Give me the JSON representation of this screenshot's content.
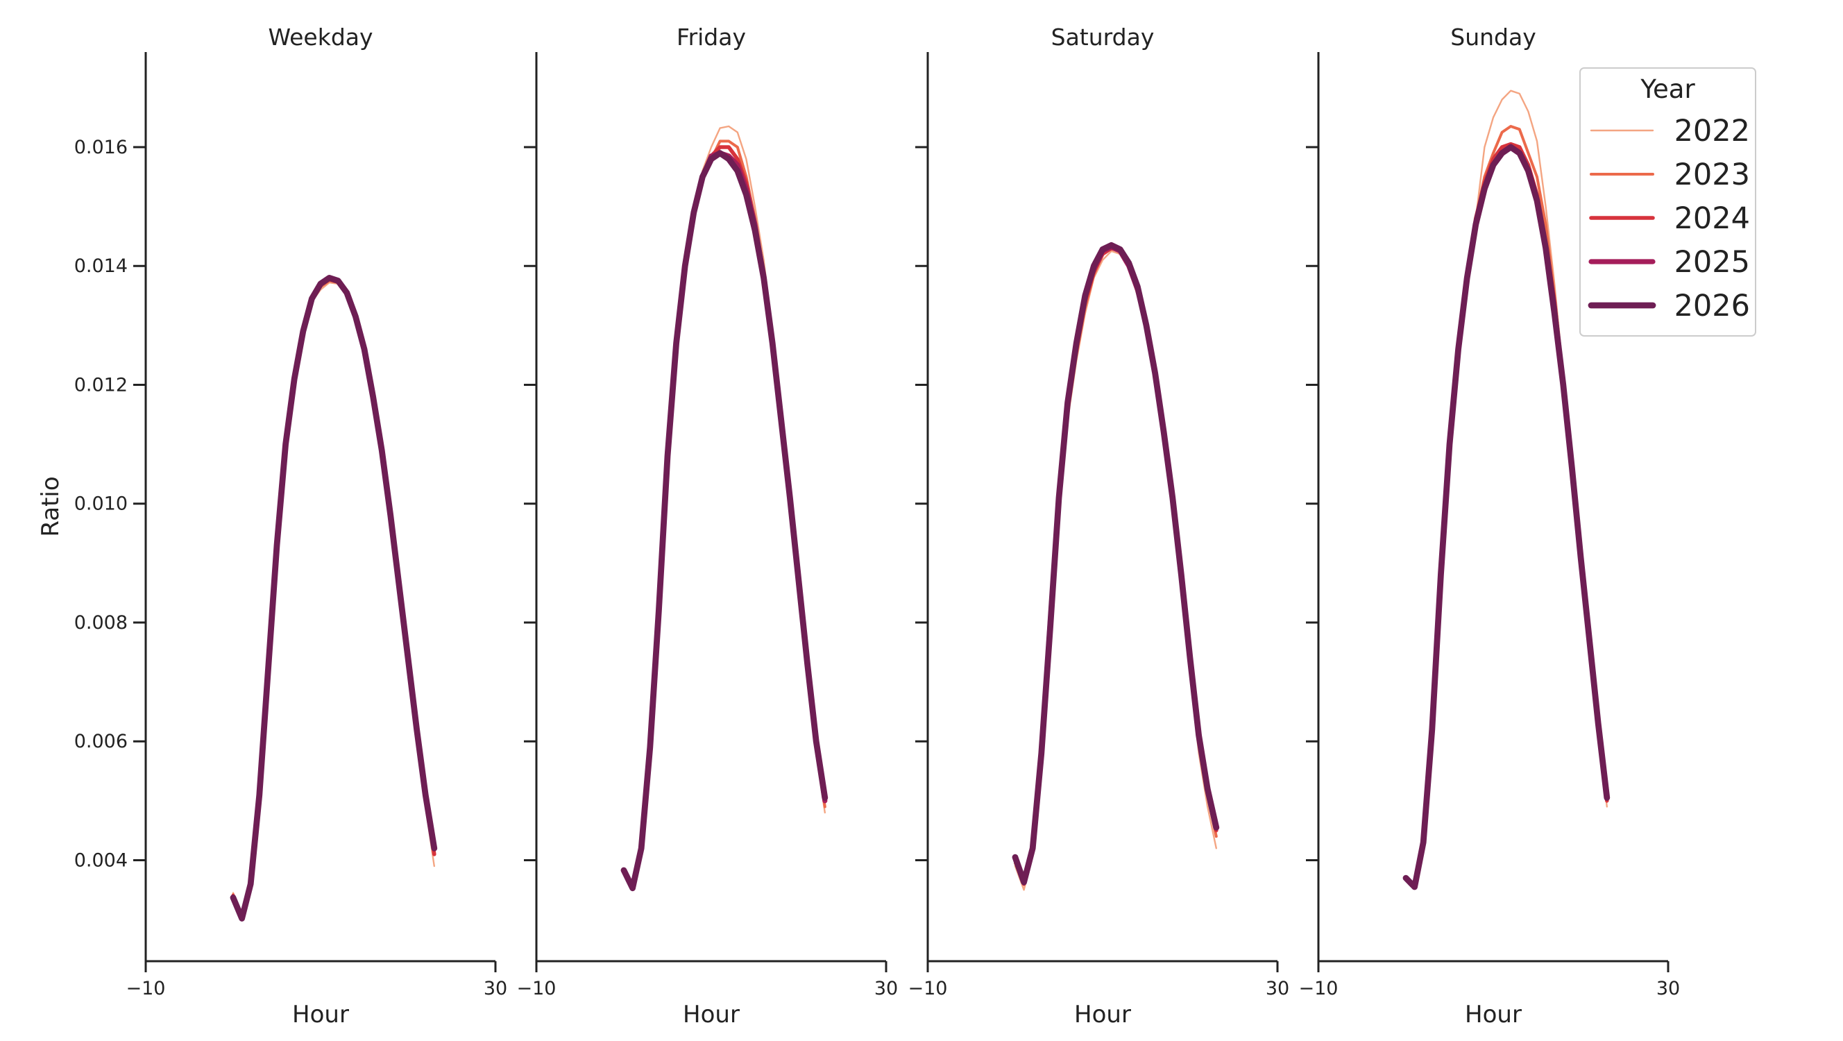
{
  "chart_data": {
    "type": "line",
    "y_label": "Ratio",
    "x_label": "Hour",
    "xlim": [
      -10,
      30
    ],
    "ylim": [
      0.0023,
      0.0176
    ],
    "x_ticks": [
      -10,
      30
    ],
    "x_tick_labels": [
      "−10",
      "30"
    ],
    "y_ticks": [
      0.004,
      0.006,
      0.008,
      0.01,
      0.012,
      0.014,
      0.016
    ],
    "y_tick_labels": [
      "0.004",
      "0.006",
      "0.008",
      "0.010",
      "0.012",
      "0.014",
      "0.016"
    ],
    "grid": false,
    "legend": {
      "title": "Year",
      "placement": "top-right",
      "entries": [
        {
          "label": "2022",
          "color": "#f4a582",
          "width": 1.5
        },
        {
          "label": "2023",
          "color": "#ec6a4b",
          "width": 2.5
        },
        {
          "label": "2024",
          "color": "#d7333c",
          "width": 3.5
        },
        {
          "label": "2025",
          "color": "#a51d5a",
          "width": 4.5
        },
        {
          "label": "2026",
          "color": "#6e1e54",
          "width": 5.5
        }
      ]
    },
    "x": [
      0,
      1,
      2,
      3,
      4,
      5,
      6,
      7,
      8,
      9,
      10,
      11,
      12,
      13,
      14,
      15,
      16,
      17,
      18,
      19,
      20,
      21,
      22,
      23
    ],
    "panels": [
      {
        "title": "Weekday",
        "series": [
          {
            "name": "2022",
            "values": [
              0.00345,
              0.00305,
              0.00365,
              0.0051,
              0.0072,
              0.0093,
              0.011,
              0.0121,
              0.0129,
              0.0134,
              0.0136,
              0.01372,
              0.0137,
              0.0135,
              0.0131,
              0.0125,
              0.0117,
              0.0108,
              0.0097,
              0.0085,
              0.0073,
              0.006,
              0.0049,
              0.0039
            ]
          },
          {
            "name": "2023",
            "values": [
              0.00342,
              0.00304,
              0.00362,
              0.0051,
              0.0072,
              0.0093,
              0.011,
              0.0121,
              0.0129,
              0.0134,
              0.01365,
              0.01375,
              0.01372,
              0.0135,
              0.0131,
              0.0125,
              0.01175,
              0.0108,
              0.0097,
              0.0086,
              0.0074,
              0.0061,
              0.005,
              0.0041
            ]
          },
          {
            "name": "2024",
            "values": [
              0.0034,
              0.00303,
              0.0036,
              0.0051,
              0.0072,
              0.0093,
              0.011,
              0.0121,
              0.0129,
              0.01345,
              0.0137,
              0.01378,
              0.01373,
              0.01352,
              0.01315,
              0.0126,
              0.0118,
              0.01085,
              0.00975,
              0.0086,
              0.0074,
              0.0062,
              0.0051,
              0.0041
            ]
          },
          {
            "name": "2025",
            "values": [
              0.00338,
              0.00303,
              0.0036,
              0.0051,
              0.0072,
              0.0093,
              0.011,
              0.0121,
              0.0129,
              0.01345,
              0.0137,
              0.0138,
              0.01375,
              0.01355,
              0.01315,
              0.0126,
              0.0118,
              0.0109,
              0.0098,
              0.0086,
              0.0074,
              0.0062,
              0.0051,
              0.0042
            ]
          },
          {
            "name": "2026",
            "values": [
              0.00337,
              0.00302,
              0.0036,
              0.0051,
              0.0072,
              0.0093,
              0.011,
              0.0121,
              0.0129,
              0.01345,
              0.0137,
              0.0138,
              0.01375,
              0.01355,
              0.01315,
              0.0126,
              0.0118,
              0.0109,
              0.0098,
              0.0086,
              0.0074,
              0.0062,
              0.0051,
              0.0042
            ]
          }
        ]
      },
      {
        "title": "Friday",
        "series": [
          {
            "name": "2022",
            "values": [
              0.0038,
              0.0035,
              0.0042,
              0.0059,
              0.0082,
              0.0108,
              0.0127,
              0.014,
              0.0149,
              0.0156,
              0.016,
              0.01632,
              0.01635,
              0.01625,
              0.0158,
              0.015,
              0.0141,
              0.0129,
              0.0115,
              0.01,
              0.0085,
              0.0071,
              0.0058,
              0.0048
            ]
          },
          {
            "name": "2023",
            "values": [
              0.00382,
              0.00352,
              0.0042,
              0.0059,
              0.0082,
              0.0108,
              0.0127,
              0.014,
              0.0149,
              0.0155,
              0.0158,
              0.0161,
              0.0161,
              0.016,
              0.0155,
              0.0148,
              0.0139,
              0.0128,
              0.0114,
              0.01,
              0.0085,
              0.0071,
              0.0059,
              0.0049
            ]
          },
          {
            "name": "2024",
            "values": [
              0.00382,
              0.00352,
              0.0042,
              0.0059,
              0.0082,
              0.0108,
              0.0127,
              0.014,
              0.0149,
              0.0155,
              0.01585,
              0.016,
              0.016,
              0.0158,
              0.0154,
              0.0147,
              0.0138,
              0.0127,
              0.0114,
              0.01,
              0.0086,
              0.0072,
              0.006,
              0.005
            ]
          },
          {
            "name": "2025",
            "values": [
              0.00382,
              0.00352,
              0.0042,
              0.0059,
              0.0082,
              0.0108,
              0.0127,
              0.014,
              0.0149,
              0.0155,
              0.01585,
              0.0159,
              0.01585,
              0.0157,
              0.0153,
              0.0147,
              0.0138,
              0.0127,
              0.0114,
              0.0101,
              0.0087,
              0.0073,
              0.006,
              0.005
            ]
          },
          {
            "name": "2026",
            "values": [
              0.00383,
              0.00353,
              0.0042,
              0.0059,
              0.0082,
              0.0108,
              0.0127,
              0.014,
              0.0149,
              0.0155,
              0.0158,
              0.0159,
              0.0158,
              0.0156,
              0.0152,
              0.0146,
              0.0138,
              0.0127,
              0.0114,
              0.0101,
              0.0087,
              0.0073,
              0.006,
              0.00505
            ]
          }
        ]
      },
      {
        "title": "Saturday",
        "series": [
          {
            "name": "2022",
            "values": [
              0.0039,
              0.0035,
              0.0041,
              0.0057,
              0.0079,
              0.01,
              0.0114,
              0.0124,
              0.0132,
              0.0138,
              0.0141,
              0.01425,
              0.0142,
              0.01395,
              0.0135,
              0.0129,
              0.0121,
              0.0111,
              0.0099,
              0.0085,
              0.0071,
              0.0058,
              0.0049,
              0.0042
            ]
          },
          {
            "name": "2023",
            "values": [
              0.00395,
              0.0036,
              0.0042,
              0.0058,
              0.008,
              0.0101,
              0.0115,
              0.0125,
              0.0133,
              0.01385,
              0.0142,
              0.0143,
              0.01425,
              0.014,
              0.0136,
              0.013,
              0.0122,
              0.0112,
              0.01,
              0.0087,
              0.0073,
              0.006,
              0.0051,
              0.0044
            ]
          },
          {
            "name": "2024",
            "values": [
              0.004,
              0.0036,
              0.0042,
              0.0058,
              0.008,
              0.0101,
              0.0116,
              0.0126,
              0.0134,
              0.0139,
              0.0142,
              0.0143,
              0.01425,
              0.014,
              0.0136,
              0.013,
              0.0122,
              0.0112,
              0.0101,
              0.0088,
              0.0074,
              0.0061,
              0.0052,
              0.0045
            ]
          },
          {
            "name": "2025",
            "values": [
              0.00403,
              0.00362,
              0.0042,
              0.0058,
              0.008,
              0.0101,
              0.0117,
              0.0127,
              0.0135,
              0.01395,
              0.01425,
              0.01432,
              0.01425,
              0.014,
              0.0136,
              0.013,
              0.0122,
              0.0112,
              0.0101,
              0.0088,
              0.0074,
              0.0061,
              0.0052,
              0.00455
            ]
          },
          {
            "name": "2026",
            "values": [
              0.00405,
              0.00363,
              0.0042,
              0.0058,
              0.0079,
              0.0101,
              0.0117,
              0.0127,
              0.0135,
              0.014,
              0.01428,
              0.01435,
              0.01428,
              0.01405,
              0.01365,
              0.013,
              0.0122,
              0.0112,
              0.0101,
              0.0088,
              0.0074,
              0.0061,
              0.0052,
              0.00455
            ]
          }
        ]
      },
      {
        "title": "Sunday",
        "series": [
          {
            "name": "2022",
            "values": [
              0.0037,
              0.00355,
              0.0043,
              0.0062,
              0.0088,
              0.011,
              0.0126,
              0.0138,
              0.0148,
              0.016,
              0.0165,
              0.0168,
              0.01695,
              0.0169,
              0.0166,
              0.0161,
              0.015,
              0.0137,
              0.0122,
              0.0107,
              0.0092,
              0.0077,
              0.0062,
              0.0049
            ]
          },
          {
            "name": "2023",
            "values": [
              0.0037,
              0.00355,
              0.0043,
              0.0062,
              0.0088,
              0.011,
              0.0126,
              0.0138,
              0.0148,
              0.0155,
              0.0159,
              0.01625,
              0.01635,
              0.0163,
              0.0159,
              0.0155,
              0.0147,
              0.0135,
              0.0121,
              0.0106,
              0.0091,
              0.0077,
              0.0063,
              0.005
            ]
          },
          {
            "name": "2024",
            "values": [
              0.0037,
              0.00355,
              0.0043,
              0.0062,
              0.0088,
              0.011,
              0.0126,
              0.0138,
              0.0148,
              0.0154,
              0.0158,
              0.016,
              0.01605,
              0.016,
              0.0157,
              0.0152,
              0.0144,
              0.0134,
              0.012,
              0.0106,
              0.0091,
              0.0077,
              0.0063,
              0.005
            ]
          },
          {
            "name": "2025",
            "values": [
              0.0037,
              0.00355,
              0.0043,
              0.0062,
              0.0088,
              0.011,
              0.0126,
              0.0138,
              0.0147,
              0.0153,
              0.0157,
              0.0159,
              0.016,
              0.0159,
              0.0156,
              0.0151,
              0.0143,
              0.0133,
              0.012,
              0.0106,
              0.0091,
              0.0077,
              0.0063,
              0.00505
            ]
          },
          {
            "name": "2026",
            "values": [
              0.0037,
              0.00355,
              0.0043,
              0.0062,
              0.0088,
              0.011,
              0.0126,
              0.0138,
              0.0147,
              0.0153,
              0.0157,
              0.0159,
              0.016,
              0.0159,
              0.0156,
              0.0151,
              0.0143,
              0.0132,
              0.012,
              0.0106,
              0.0091,
              0.0077,
              0.0063,
              0.00505
            ]
          }
        ]
      }
    ]
  }
}
